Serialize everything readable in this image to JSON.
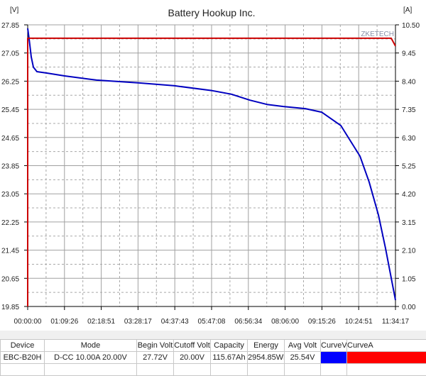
{
  "chart_data": {
    "type": "line",
    "title": "Battery Hookup Inc.",
    "watermark": "ZKETECH",
    "y_left_unit": "[V]",
    "y_right_unit": "[A]",
    "y_left_ticks": [
      "27.85",
      "27.05",
      "26.25",
      "25.45",
      "24.65",
      "23.85",
      "23.05",
      "22.25",
      "21.45",
      "20.65",
      "19.85"
    ],
    "y_right_ticks": [
      "10.50",
      "9.45",
      "8.40",
      "7.35",
      "6.30",
      "5.25",
      "4.20",
      "3.15",
      "2.10",
      "1.05",
      "0.00"
    ],
    "x_ticks": [
      "00:00:00",
      "01:09:26",
      "02:18:51",
      "03:28:17",
      "04:37:43",
      "05:47:08",
      "06:56:34",
      "08:06:00",
      "09:15:26",
      "10:24:51",
      "11:34:17"
    ],
    "ylim_left": [
      19.85,
      27.85
    ],
    "ylim_right": [
      0,
      10.5
    ],
    "xlim": [
      "00:00:00",
      "11:34:17"
    ],
    "grid": true,
    "series": [
      {
        "axis": "left",
        "color": "#0000c0",
        "points": [
          [
            "00:00:00",
            27.75
          ],
          [
            "00:02:41",
            27.45
          ],
          [
            "00:06:42",
            26.94
          ],
          [
            "00:10:43",
            26.65
          ],
          [
            "00:17:25",
            26.52
          ],
          [
            "00:36:11",
            26.48
          ],
          [
            "01:09:42",
            26.4
          ],
          [
            "02:10:01",
            26.28
          ],
          [
            "03:30:26",
            26.2
          ],
          [
            "04:37:27",
            26.12
          ],
          [
            "05:48:29",
            25.98
          ],
          [
            "06:24:40",
            25.88
          ],
          [
            "06:59:31",
            25.71
          ],
          [
            "07:31:41",
            25.59
          ],
          [
            "08:02:31",
            25.53
          ],
          [
            "08:44:04",
            25.47
          ],
          [
            "09:14:54",
            25.37
          ],
          [
            "09:51:05",
            24.99
          ],
          [
            "10:27:16",
            24.12
          ],
          [
            "10:44:43",
            23.38
          ],
          [
            "11:02:08",
            22.45
          ],
          [
            "11:15:32",
            21.5
          ],
          [
            "11:34:17",
            20.03
          ]
        ]
      },
      {
        "axis": "right",
        "color": "#cc0000",
        "points": [
          [
            "00:00:00",
            0.0
          ],
          [
            "00:00:00",
            10.0
          ],
          [
            "11:26:15",
            10.0
          ],
          [
            "11:34:17",
            9.71
          ]
        ]
      }
    ]
  },
  "table": {
    "headers": [
      "Device",
      "Mode",
      "Begin Volt",
      "Cutoff Volt",
      "Capacity",
      "Energy",
      "Avg Volt",
      "CurveV",
      "CurveA"
    ],
    "row": {
      "device": "EBC-B20H",
      "mode": "D-CC 10.00A  20.00V",
      "begin_volt": "27.72V",
      "cutoff_volt": "20.00V",
      "capacity": "115.67Ah",
      "energy": "2954.85Wh",
      "avg_volt": "25.54V"
    },
    "curve_v_color": "#0000ff",
    "curve_a_color": "#ff0000"
  }
}
